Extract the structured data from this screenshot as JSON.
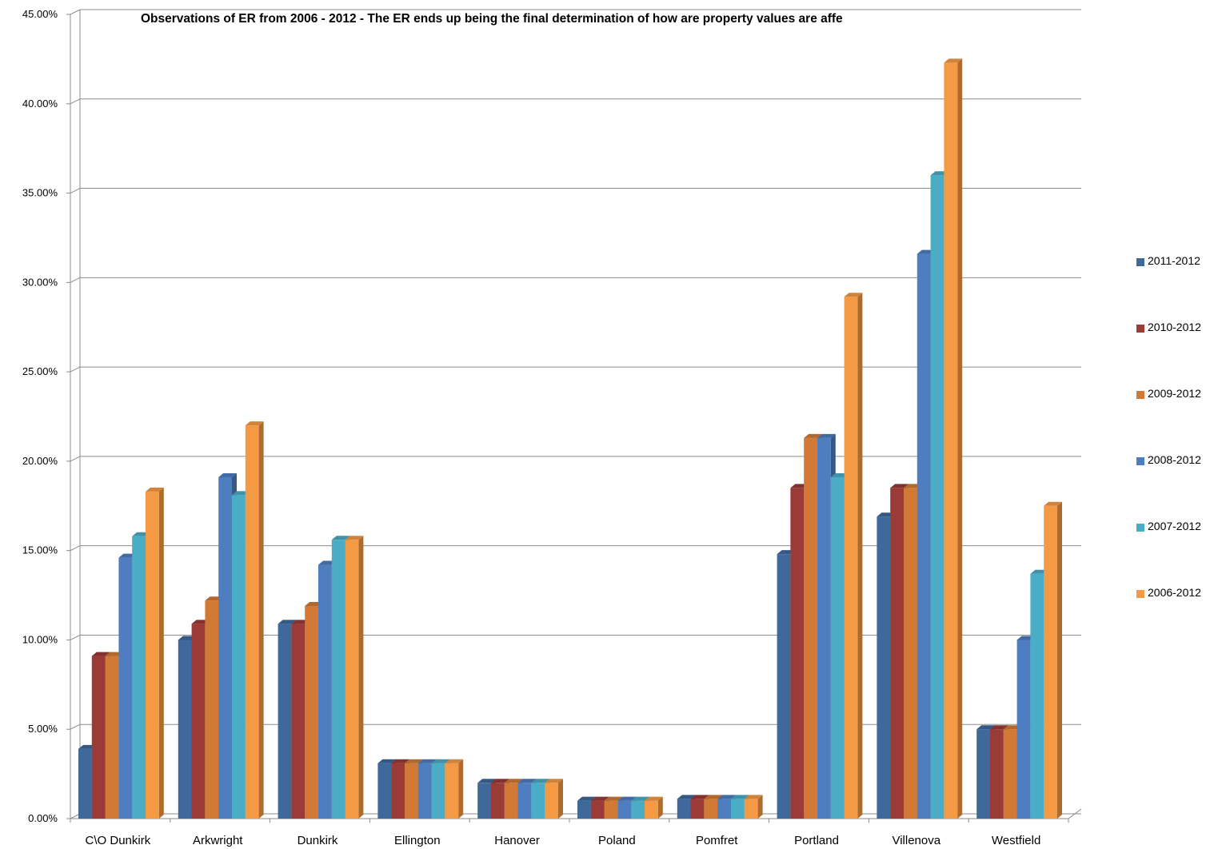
{
  "chart_data": {
    "type": "bar",
    "title": "Observations of ER from 2006 - 2012 - The ER ends up being the final determination of how are property values are affe",
    "categories": [
      "C\\O Dunkirk",
      "Arkwright",
      "Dunkirk",
      "Ellington",
      "Hanover",
      "Poland",
      "Pomfret",
      "Portland",
      "Villenova",
      "Westfield"
    ],
    "series": [
      {
        "name": "2011-2012",
        "color": "#3f689b",
        "values": [
          3.9,
          10.0,
          10.9,
          3.1,
          2.0,
          1.0,
          1.1,
          14.8,
          16.9,
          5.0
        ]
      },
      {
        "name": "2010-2012",
        "color": "#9a3b38",
        "values": [
          9.1,
          10.9,
          10.9,
          3.1,
          2.0,
          1.0,
          1.1,
          18.5,
          18.5,
          5.0
        ]
      },
      {
        "name": "2009-2012",
        "color": "#d27a35",
        "values": [
          9.1,
          12.2,
          11.9,
          3.1,
          2.0,
          1.0,
          1.1,
          21.3,
          18.5,
          5.0
        ]
      },
      {
        "name": "2008-2012",
        "color": "#4f7ec0",
        "values": [
          14.6,
          19.1,
          14.2,
          3.1,
          2.0,
          1.0,
          1.1,
          21.3,
          31.6,
          10.0
        ]
      },
      {
        "name": "2007-2012",
        "color": "#4bacc6",
        "values": [
          15.8,
          18.1,
          15.6,
          3.1,
          2.0,
          1.0,
          1.1,
          19.1,
          36.0,
          13.7
        ]
      },
      {
        "name": "2006-2012",
        "color": "#f59a44",
        "values": [
          18.3,
          22.0,
          15.6,
          3.1,
          2.0,
          1.0,
          1.1,
          29.2,
          42.3,
          17.5
        ]
      }
    ],
    "ylim": [
      0,
      45
    ],
    "yticks": [
      "0.00%",
      "5.00%",
      "10.00%",
      "15.00%",
      "20.00%",
      "25.00%",
      "30.00%",
      "35.00%",
      "40.00%",
      "45.00%"
    ],
    "xlabel": "",
    "ylabel": "",
    "grid": true,
    "legend_position": "right"
  }
}
